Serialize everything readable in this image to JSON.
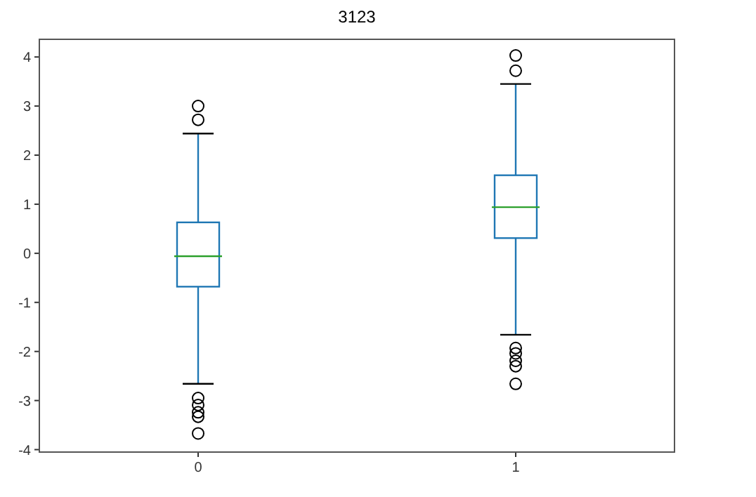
{
  "chart_data": {
    "type": "box",
    "title": "3123",
    "categories": [
      "0",
      "1"
    ],
    "color": "#1f77b4",
    "boxes": [
      {
        "low": -2.66,
        "q1": -0.68,
        "median": -0.06,
        "q3": 0.63,
        "high": 2.44,
        "outliers": [
          3.0,
          2.72,
          -2.95,
          -3.09,
          -3.24,
          -3.33,
          -3.67
        ]
      },
      {
        "low": -1.66,
        "q1": 0.31,
        "median": 0.94,
        "q3": 1.59,
        "high": 3.45,
        "outliers": [
          4.03,
          3.72,
          -1.93,
          -2.04,
          -2.19,
          -2.3,
          -2.66
        ]
      }
    ],
    "ylim": [
      -4.05,
      4.36
    ],
    "yticks": [
      -4,
      -3,
      -2,
      -1,
      0,
      1,
      2,
      3,
      4
    ],
    "grid": false
  }
}
